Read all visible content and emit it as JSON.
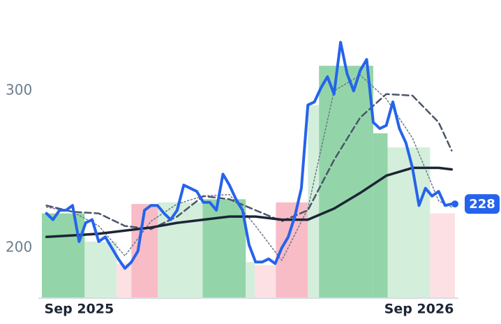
{
  "chart_data": {
    "type": "line",
    "xlim": [
      -5.7,
      57.5
    ],
    "ylim": [
      168,
      349
    ],
    "xticks": [
      {
        "value": 0,
        "label": "Sep 2025"
      },
      {
        "value": 52,
        "label": "Sep 2026"
      }
    ],
    "yticks": [
      200,
      300
    ],
    "bands": {
      "x0": [
        -5.7,
        0.85,
        5.76,
        8.0,
        12.06,
        18.9,
        25.5,
        26.9,
        30.1,
        35.0,
        36.7,
        45.0,
        47.2,
        53.7
      ],
      "x1": [
        0.85,
        5.76,
        8.0,
        12.06,
        18.9,
        25.5,
        26.9,
        30.1,
        35.0,
        36.7,
        45.0,
        47.2,
        53.7,
        57.5
      ],
      "values": [
        222,
        204,
        190,
        228,
        229,
        231,
        191,
        189,
        229,
        291,
        316,
        273,
        264,
        222
      ],
      "colors": [
        "#93d5a9",
        "#d4eedc",
        "#fde0e4",
        "#f8bcc7",
        "#d4eedc",
        "#93d5a9",
        "#d4eedc",
        "#fde0e4",
        "#f8bcc7",
        "#d4eedc",
        "#93d5a9",
        "#93d5a9",
        "#d4eedc",
        "#fde0e4"
      ]
    },
    "series": [
      {
        "color": "#6a7788",
        "width": 1.5,
        "dash": "2 3",
        "x": [
          -5,
          -1,
          3,
          7,
          11,
          15,
          19,
          23,
          27,
          31,
          35,
          39,
          43,
          47,
          51,
          55,
          57
        ],
        "values": [
          226,
          223,
          214,
          195,
          217,
          228,
          233,
          234,
          214,
          192,
          225,
          300,
          310,
          295,
          270,
          230,
          226
        ]
      },
      {
        "color": "#4a5568",
        "width": 2.5,
        "dash": "9 5",
        "x": [
          -5,
          -1,
          3,
          7,
          11,
          15,
          19,
          23,
          27,
          31,
          35,
          39,
          43,
          47,
          51,
          55,
          57
        ],
        "values": [
          227,
          223,
          222,
          214,
          212,
          220,
          233,
          231,
          224,
          217,
          224,
          256,
          283,
          298,
          297,
          280,
          262
        ]
      },
      {
        "color": "#1c2535",
        "width": 3.5,
        "dash": "",
        "x": [
          -5,
          -1,
          3,
          7,
          11,
          15,
          19,
          23,
          27,
          31,
          35,
          39,
          43,
          47,
          51,
          55,
          57
        ],
        "values": [
          207,
          208,
          209,
          211,
          213,
          216,
          218,
          220,
          220,
          218,
          218,
          225,
          235,
          246,
          251,
          251,
          250
        ]
      },
      {
        "color": "#2563eb",
        "width": 4,
        "dash": "",
        "last_label": true,
        "x": [
          -5,
          -4,
          -3,
          -2,
          -1,
          0,
          1,
          2,
          3,
          4,
          5,
          6,
          7,
          8,
          9,
          10,
          11,
          12,
          13,
          14,
          15,
          16,
          17,
          18,
          19,
          20,
          21,
          22,
          23,
          24,
          25,
          26,
          27,
          28,
          29,
          30,
          31,
          32,
          33,
          34,
          35,
          36,
          37,
          38,
          39,
          40,
          41,
          42,
          43,
          44,
          45,
          46,
          47,
          48,
          49,
          50,
          51,
          52,
          53,
          54,
          55,
          56,
          57
        ],
        "values": [
          222,
          218,
          224,
          224,
          227,
          204,
          216,
          218,
          204,
          207,
          200,
          193,
          187,
          191,
          198,
          224,
          227,
          227,
          222,
          218,
          224,
          240,
          238,
          236,
          229,
          229,
          224,
          247,
          240,
          231,
          224,
          202,
          191,
          191,
          193,
          190,
          200,
          207,
          220,
          238,
          291,
          293,
          302,
          309,
          298,
          331,
          311,
          300,
          313,
          320,
          280,
          276,
          278,
          293,
          276,
          267,
          251,
          227,
          238,
          233,
          236,
          227,
          228
        ]
      }
    ]
  }
}
